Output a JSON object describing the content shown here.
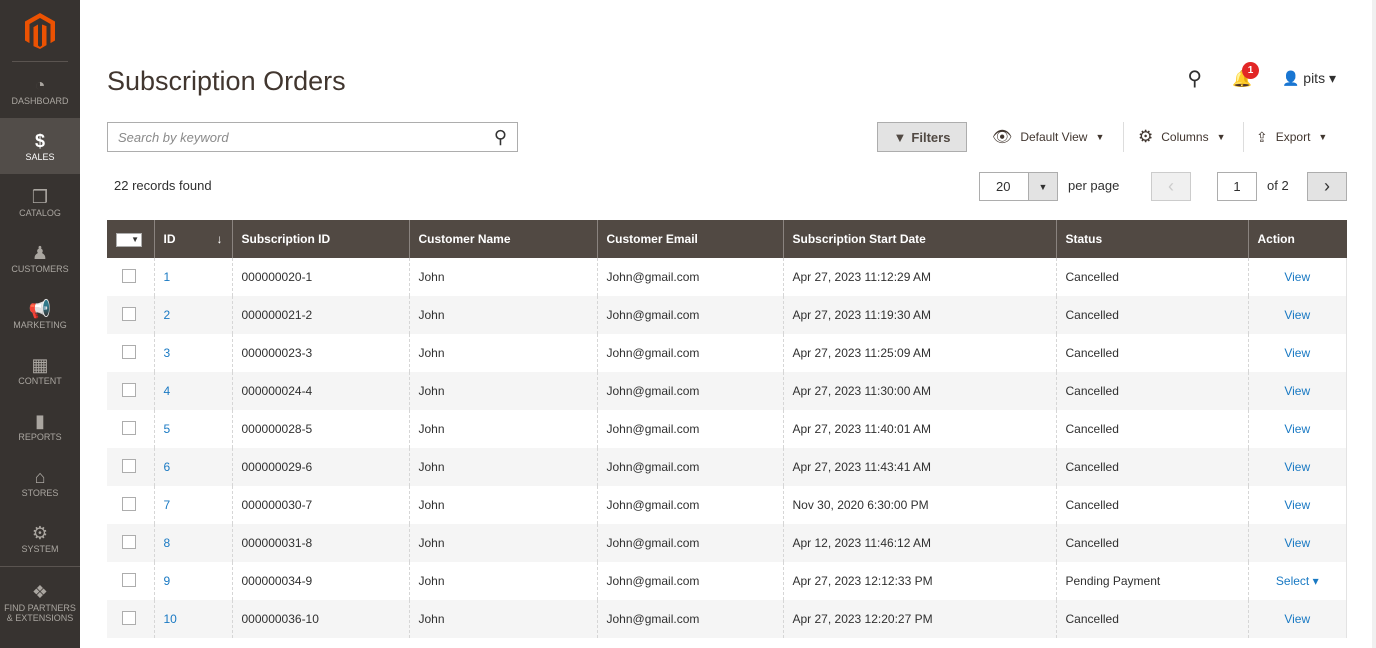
{
  "sidebar": {
    "items": [
      {
        "label": "DASHBOARD",
        "icon": "dashboard-icon",
        "glyph": "◔"
      },
      {
        "label": "SALES",
        "icon": "dollar-icon",
        "glyph": "$",
        "active": true
      },
      {
        "label": "CATALOG",
        "icon": "box-icon",
        "glyph": "❒"
      },
      {
        "label": "CUSTOMERS",
        "icon": "person-icon",
        "glyph": "♟"
      },
      {
        "label": "MARKETING",
        "icon": "megaphone-icon",
        "glyph": "📢"
      },
      {
        "label": "CONTENT",
        "icon": "layout-icon",
        "glyph": "▦"
      },
      {
        "label": "REPORTS",
        "icon": "bar-chart-icon",
        "glyph": "▮"
      },
      {
        "label": "STORES",
        "icon": "store-icon",
        "glyph": "⌂"
      },
      {
        "label": "SYSTEM",
        "icon": "gear-icon",
        "glyph": "⚙"
      },
      {
        "label": "FIND PARTNERS & EXTENSIONS",
        "icon": "bricks-icon",
        "glyph": "❖"
      }
    ]
  },
  "header": {
    "title": "Subscription Orders",
    "notifications": "1",
    "user": "pits"
  },
  "toolbar": {
    "search_placeholder": "Search by keyword",
    "filters": "Filters",
    "view": "Default View",
    "columns": "Columns",
    "export": "Export",
    "records": "22 records found",
    "per_page_value": "20",
    "per_page_label": "per page",
    "page": "1",
    "of_pages": "of 2"
  },
  "table": {
    "headers": [
      "ID",
      "Subscription ID",
      "Customer Name",
      "Customer Email",
      "Subscription Start Date",
      "Status",
      "Action"
    ],
    "rows": [
      [
        "1",
        "000000020-1",
        "John",
        "John@gmail.com",
        "Apr 27, 2023 11:12:29 AM",
        "Cancelled",
        "View"
      ],
      [
        "2",
        "000000021-2",
        "John",
        "John@gmail.com",
        "Apr 27, 2023 11:19:30 AM",
        "Cancelled",
        "View"
      ],
      [
        "3",
        "000000023-3",
        "John",
        "John@gmail.com",
        "Apr 27, 2023 11:25:09 AM",
        "Cancelled",
        "View"
      ],
      [
        "4",
        "000000024-4",
        "John",
        "John@gmail.com",
        "Apr 27, 2023 11:30:00 AM",
        "Cancelled",
        "View"
      ],
      [
        "5",
        "000000028-5",
        "John",
        "John@gmail.com",
        "Apr 27, 2023 11:40:01 AM",
        "Cancelled",
        "View"
      ],
      [
        "6",
        "000000029-6",
        "John",
        "John@gmail.com",
        "Apr 27, 2023 11:43:41 AM",
        "Cancelled",
        "View"
      ],
      [
        "7",
        "000000030-7",
        "John",
        "John@gmail.com",
        "Nov 30, 2020 6:30:00 PM",
        "Cancelled",
        "View"
      ],
      [
        "8",
        "000000031-8",
        "John",
        "John@gmail.com",
        "Apr 12, 2023 11:46:12 AM",
        "Cancelled",
        "View"
      ],
      [
        "9",
        "000000034-9",
        "John",
        "John@gmail.com",
        "Apr 27, 2023 12:12:33 PM",
        "Pending Payment",
        "Select ▾"
      ],
      [
        "10",
        "000000036-10",
        "John",
        "John@gmail.com",
        "Apr 27, 2023 12:20:27 PM",
        "Cancelled",
        "View"
      ]
    ]
  }
}
